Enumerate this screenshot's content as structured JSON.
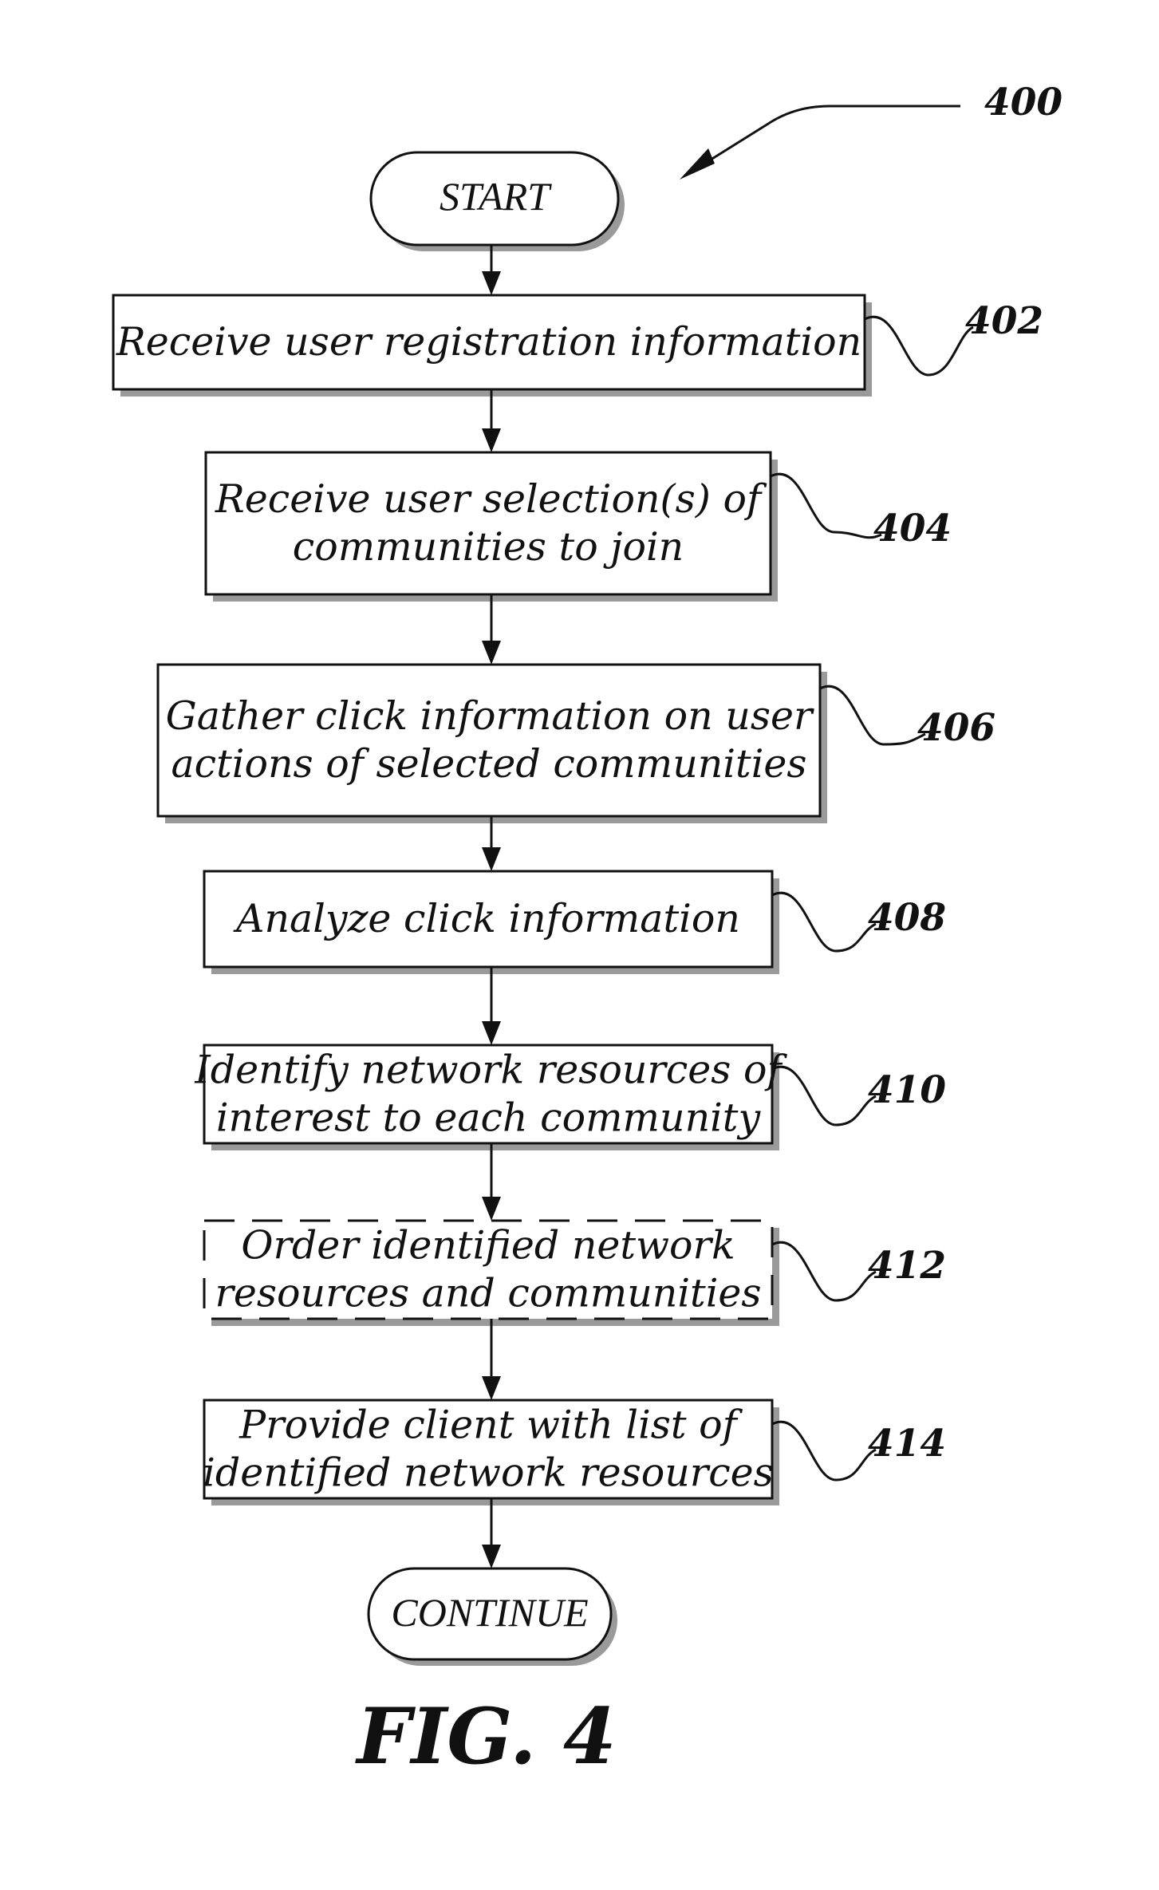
{
  "figure": {
    "ref": "400",
    "start_label": "START",
    "end_label": "CONTINUE",
    "caption": "FIG. 4"
  },
  "steps": [
    {
      "ref": "402",
      "lines": [
        "Receive user registration information"
      ],
      "style": "solid"
    },
    {
      "ref": "404",
      "lines": [
        "Receive user selection(s) of",
        "communities to join"
      ],
      "style": "solid"
    },
    {
      "ref": "406",
      "lines": [
        "Gather click information on user",
        "actions of selected communities"
      ],
      "style": "solid"
    },
    {
      "ref": "408",
      "lines": [
        "Analyze click information"
      ],
      "style": "solid"
    },
    {
      "ref": "410",
      "lines": [
        "Identify network resources of",
        "interest to each community"
      ],
      "style": "solid"
    },
    {
      "ref": "412",
      "lines": [
        "Order identified network",
        "resources and communities"
      ],
      "style": "dashed"
    },
    {
      "ref": "414",
      "lines": [
        "Provide client with list of",
        "identified network resources"
      ],
      "style": "solid"
    }
  ]
}
